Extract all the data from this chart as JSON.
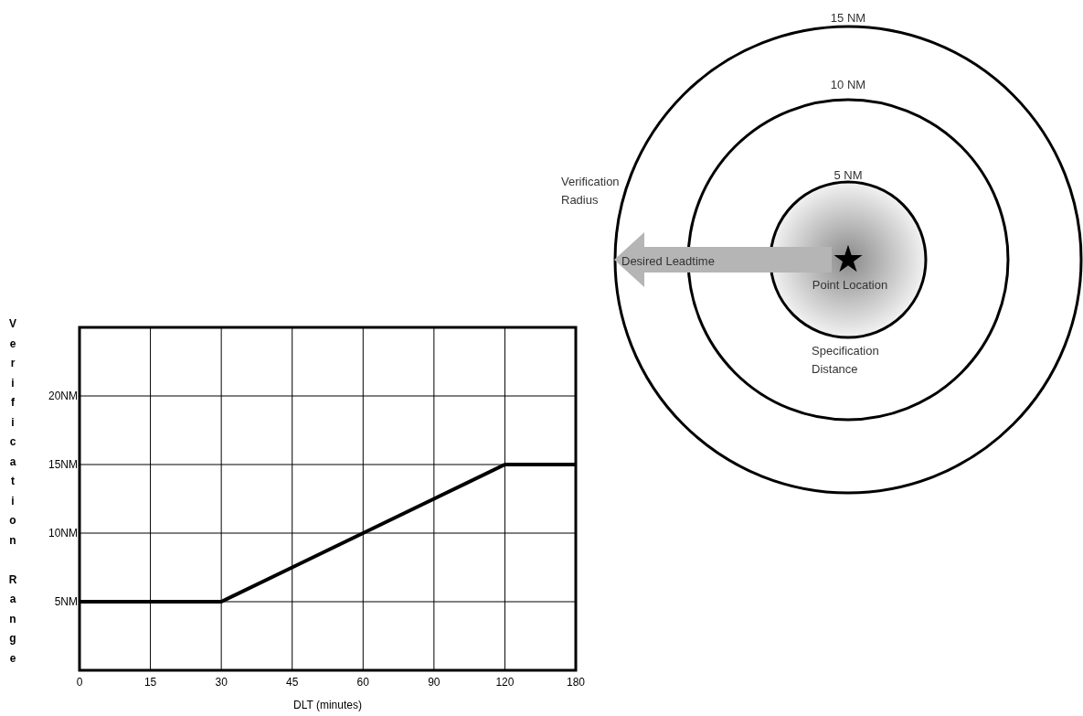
{
  "chart_data": [
    {
      "type": "line",
      "xlabel": "DLT (minutes)",
      "ylabel": "Verification Range",
      "categories": [
        "0",
        "15",
        "30",
        "45",
        "60",
        "90",
        "120",
        "180"
      ],
      "series": [
        {
          "color": "#000000",
          "values": [
            5,
            5,
            5,
            7.5,
            10,
            12.5,
            15,
            15
          ]
        }
      ],
      "ylim": [
        0,
        25
      ],
      "yticks": [
        {
          "value": 5,
          "label": "5NM"
        },
        {
          "value": 10,
          "label": "10NM"
        },
        {
          "value": 15,
          "label": "15NM"
        },
        {
          "value": 20,
          "label": "20NM"
        }
      ],
      "grid": true
    },
    {
      "type": "other",
      "annotations": [
        "15 NM",
        "10 NM",
        "5 NM",
        "Verification Radius",
        "Desired Leadtime",
        "Point Location",
        "Specification Distance"
      ]
    }
  ]
}
